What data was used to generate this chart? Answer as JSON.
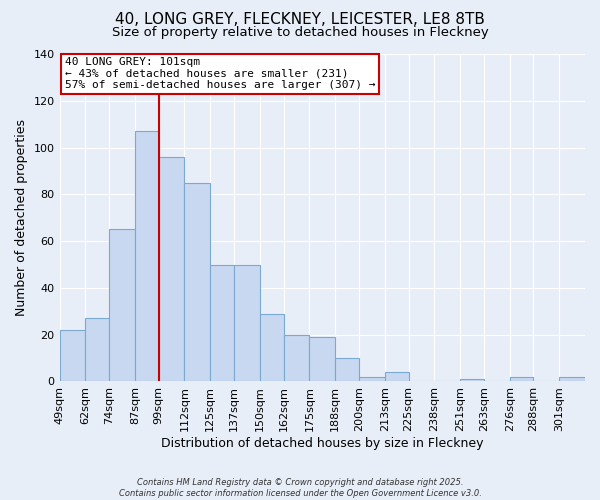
{
  "title": "40, LONG GREY, FLECKNEY, LEICESTER, LE8 8TB",
  "subtitle": "Size of property relative to detached houses in Fleckney",
  "xlabel": "Distribution of detached houses by size in Fleckney",
  "ylabel": "Number of detached properties",
  "categories": [
    "49sqm",
    "62sqm",
    "74sqm",
    "87sqm",
    "99sqm",
    "112sqm",
    "125sqm",
    "137sqm",
    "150sqm",
    "162sqm",
    "175sqm",
    "188sqm",
    "200sqm",
    "213sqm",
    "225sqm",
    "238sqm",
    "251sqm",
    "263sqm",
    "276sqm",
    "288sqm",
    "301sqm"
  ],
  "values": [
    22,
    27,
    65,
    107,
    96,
    85,
    50,
    50,
    29,
    20,
    19,
    10,
    2,
    4,
    0,
    0,
    1,
    0,
    2,
    0,
    2
  ],
  "bar_color": "#c8d8f0",
  "bar_edge_color": "#7aaad0",
  "annotation_text_line1": "40 LONG GREY: 101sqm",
  "annotation_text_line2": "← 43% of detached houses are smaller (231)",
  "annotation_text_line3": "57% of semi-detached houses are larger (307) →",
  "annotation_box_color": "#ffffff",
  "annotation_box_edge_color": "#cc0000",
  "vline_color": "#cc0000",
  "vline_x": 99,
  "ylim": [
    0,
    140
  ],
  "yticks": [
    0,
    20,
    40,
    60,
    80,
    100,
    120,
    140
  ],
  "footer_line1": "Contains HM Land Registry data © Crown copyright and database right 2025.",
  "footer_line2": "Contains public sector information licensed under the Open Government Licence v3.0.",
  "background_color": "#e8eef8",
  "grid_color": "#ffffff",
  "title_fontsize": 11,
  "subtitle_fontsize": 9.5,
  "bin_starts": [
    49,
    62,
    74,
    87,
    99,
    112,
    125,
    137,
    150,
    162,
    175,
    188,
    200,
    213,
    225,
    238,
    251,
    263,
    276,
    288,
    301
  ]
}
